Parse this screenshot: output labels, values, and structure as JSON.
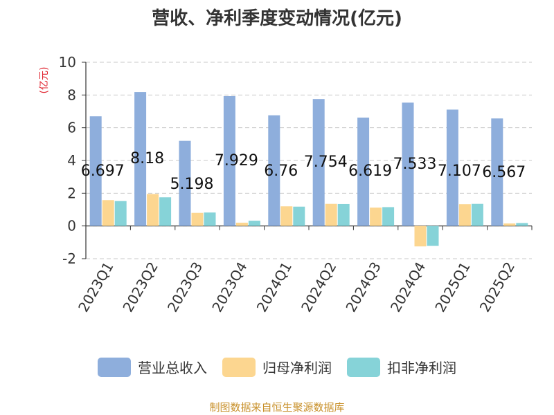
{
  "chart_data": {
    "type": "bar",
    "title": "营收、净利季度变动情况(亿元)",
    "ylabel": "(亿元)",
    "xlabel": "",
    "ylim": [
      -2,
      10
    ],
    "yticks": [
      -2,
      0,
      2,
      4,
      6,
      8,
      10
    ],
    "grid": true,
    "legend_position": "bottom",
    "categories": [
      "2023Q1",
      "2023Q2",
      "2023Q3",
      "2023Q4",
      "2024Q1",
      "2024Q2",
      "2024Q3",
      "2024Q4",
      "2025Q1",
      "2025Q2"
    ],
    "series": [
      {
        "name": "营业总收入",
        "color": "#8eaedc",
        "values": [
          6.697,
          8.18,
          5.198,
          7.929,
          6.76,
          7.754,
          6.619,
          7.533,
          7.107,
          6.567
        ],
        "labels": [
          "6.697",
          "8.18",
          "5.198",
          "7.929",
          "6.76",
          "7.754",
          "6.619",
          "7.533",
          "7.107",
          "6.567"
        ]
      },
      {
        "name": "归母净利润",
        "color": "#fcd690",
        "values": [
          1.58,
          1.95,
          0.8,
          0.2,
          1.2,
          1.35,
          1.12,
          -1.25,
          1.33,
          0.15
        ]
      },
      {
        "name": "扣非净利润",
        "color": "#86d3d8",
        "values": [
          1.52,
          1.75,
          0.82,
          0.32,
          1.18,
          1.34,
          1.15,
          -1.22,
          1.35,
          0.18
        ]
      }
    ]
  },
  "source_note": "制图数据来自恒生聚源数据库"
}
